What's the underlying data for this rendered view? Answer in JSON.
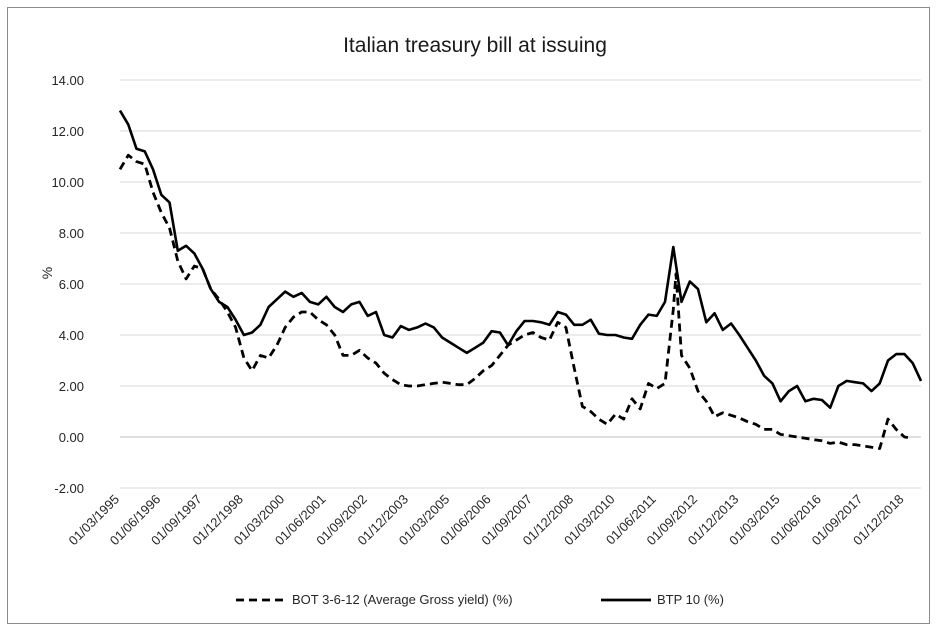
{
  "chart_data": {
    "type": "line",
    "title": "Italian treasury bill at issuing",
    "xlabel": "",
    "ylabel": "%",
    "ylim": [
      -2,
      14
    ],
    "yticks": [
      "-2.00",
      "0.00",
      "2.00",
      "4.00",
      "6.00",
      "8.00",
      "10.00",
      "12.00",
      "14.00"
    ],
    "xticks": [
      "01/03/1995",
      "01/06/1996",
      "01/09/1997",
      "01/12/1998",
      "01/03/2000",
      "01/06/2001",
      "01/09/2002",
      "01/12/2003",
      "01/03/2005",
      "01/06/2006",
      "01/09/2007",
      "01/12/2008",
      "01/03/2010",
      "01/06/2011",
      "01/09/2012",
      "01/12/2013",
      "01/03/2015",
      "01/06/2016",
      "01/09/2017",
      "01/12/2018"
    ],
    "grid": true,
    "legend_position": "bottom",
    "colors": {
      "line": "#000000",
      "grid": "#d9d9d9",
      "text": "#262626"
    },
    "series": [
      {
        "name": "BOT 3-6-12 (Average Gross yield) (%)",
        "style": "dashed",
        "points": [
          [
            "1995-03",
            10.5
          ],
          [
            "1995-06",
            11.05
          ],
          [
            "1995-09",
            10.8
          ],
          [
            "1995-12",
            10.7
          ],
          [
            "1996-03",
            9.6
          ],
          [
            "1996-06",
            8.8
          ],
          [
            "1996-09",
            8.2
          ],
          [
            "1996-12",
            6.9
          ],
          [
            "1997-03",
            6.2
          ],
          [
            "1997-06",
            6.7
          ],
          [
            "1997-09",
            6.6
          ],
          [
            "1997-12",
            5.8
          ],
          [
            "1998-03",
            5.4
          ],
          [
            "1998-06",
            4.9
          ],
          [
            "1998-09",
            4.3
          ],
          [
            "1998-12",
            3.1
          ],
          [
            "1999-03",
            2.6
          ],
          [
            "1999-06",
            3.2
          ],
          [
            "1999-09",
            3.1
          ],
          [
            "1999-12",
            3.6
          ],
          [
            "2000-03",
            4.3
          ],
          [
            "2000-06",
            4.7
          ],
          [
            "2000-09",
            4.9
          ],
          [
            "2000-12",
            4.9
          ],
          [
            "2001-03",
            4.6
          ],
          [
            "2001-06",
            4.4
          ],
          [
            "2001-09",
            4.0
          ],
          [
            "2001-12",
            3.2
          ],
          [
            "2002-03",
            3.2
          ],
          [
            "2002-06",
            3.4
          ],
          [
            "2002-09",
            3.1
          ],
          [
            "2002-12",
            2.9
          ],
          [
            "2003-03",
            2.5
          ],
          [
            "2003-06",
            2.25
          ],
          [
            "2003-09",
            2.05
          ],
          [
            "2003-12",
            2.0
          ],
          [
            "2004-03",
            2.0
          ],
          [
            "2004-06",
            2.05
          ],
          [
            "2004-09",
            2.1
          ],
          [
            "2004-12",
            2.15
          ],
          [
            "2005-03",
            2.1
          ],
          [
            "2005-06",
            2.05
          ],
          [
            "2005-09",
            2.05
          ],
          [
            "2005-12",
            2.3
          ],
          [
            "2006-03",
            2.6
          ],
          [
            "2006-06",
            2.8
          ],
          [
            "2006-09",
            3.2
          ],
          [
            "2006-12",
            3.6
          ],
          [
            "2007-03",
            3.8
          ],
          [
            "2007-06",
            4.0
          ],
          [
            "2007-09",
            4.1
          ],
          [
            "2007-12",
            3.9
          ],
          [
            "2008-03",
            3.8
          ],
          [
            "2008-06",
            4.5
          ],
          [
            "2008-09",
            4.3
          ],
          [
            "2008-12",
            2.7
          ],
          [
            "2009-03",
            1.2
          ],
          [
            "2009-06",
            1.0
          ],
          [
            "2009-09",
            0.7
          ],
          [
            "2009-12",
            0.5
          ],
          [
            "2010-03",
            0.9
          ],
          [
            "2010-06",
            0.7
          ],
          [
            "2010-09",
            1.5
          ],
          [
            "2010-12",
            1.1
          ],
          [
            "2011-03",
            2.1
          ],
          [
            "2011-06",
            1.9
          ],
          [
            "2011-09",
            2.1
          ],
          [
            "2011-12",
            5.0
          ],
          [
            "2012-01",
            6.4
          ],
          [
            "2012-03",
            3.2
          ],
          [
            "2012-06",
            2.7
          ],
          [
            "2012-09",
            1.8
          ],
          [
            "2012-12",
            1.4
          ],
          [
            "2013-03",
            0.8
          ],
          [
            "2013-06",
            0.95
          ],
          [
            "2013-09",
            0.85
          ],
          [
            "2013-12",
            0.75
          ],
          [
            "2014-03",
            0.6
          ],
          [
            "2014-06",
            0.5
          ],
          [
            "2014-09",
            0.3
          ],
          [
            "2014-12",
            0.3
          ],
          [
            "2015-03",
            0.1
          ],
          [
            "2015-06",
            0.05
          ],
          [
            "2015-09",
            0.0
          ],
          [
            "2015-12",
            -0.05
          ],
          [
            "2016-03",
            -0.1
          ],
          [
            "2016-06",
            -0.15
          ],
          [
            "2016-09",
            -0.25
          ],
          [
            "2016-12",
            -0.2
          ],
          [
            "2017-03",
            -0.3
          ],
          [
            "2017-06",
            -0.3
          ],
          [
            "2017-09",
            -0.35
          ],
          [
            "2017-12",
            -0.4
          ],
          [
            "2018-03",
            -0.45
          ],
          [
            "2018-06",
            0.7
          ],
          [
            "2018-09",
            0.3
          ],
          [
            "2018-12",
            0.0
          ],
          [
            "2019-03",
            -0.05
          ]
        ]
      },
      {
        "name": "BTP 10 (%)",
        "style": "solid",
        "points": [
          [
            "1995-03",
            12.8
          ],
          [
            "1995-06",
            12.25
          ],
          [
            "1995-09",
            11.3
          ],
          [
            "1995-12",
            11.2
          ],
          [
            "1996-03",
            10.5
          ],
          [
            "1996-06",
            9.5
          ],
          [
            "1996-09",
            9.2
          ],
          [
            "1996-12",
            7.3
          ],
          [
            "1997-03",
            7.5
          ],
          [
            "1997-06",
            7.2
          ],
          [
            "1997-09",
            6.6
          ],
          [
            "1997-12",
            5.8
          ],
          [
            "1998-03",
            5.3
          ],
          [
            "1998-06",
            5.1
          ],
          [
            "1998-09",
            4.6
          ],
          [
            "1998-12",
            4.0
          ],
          [
            "1999-03",
            4.1
          ],
          [
            "1999-06",
            4.4
          ],
          [
            "1999-09",
            5.1
          ],
          [
            "1999-12",
            5.4
          ],
          [
            "2000-03",
            5.7
          ],
          [
            "2000-06",
            5.5
          ],
          [
            "2000-09",
            5.65
          ],
          [
            "2000-12",
            5.3
          ],
          [
            "2001-03",
            5.2
          ],
          [
            "2001-06",
            5.5
          ],
          [
            "2001-09",
            5.1
          ],
          [
            "2001-12",
            4.9
          ],
          [
            "2002-03",
            5.2
          ],
          [
            "2002-06",
            5.3
          ],
          [
            "2002-09",
            4.75
          ],
          [
            "2002-12",
            4.9
          ],
          [
            "2003-03",
            4.0
          ],
          [
            "2003-06",
            3.9
          ],
          [
            "2003-09",
            4.35
          ],
          [
            "2003-12",
            4.2
          ],
          [
            "2004-03",
            4.3
          ],
          [
            "2004-06",
            4.45
          ],
          [
            "2004-09",
            4.3
          ],
          [
            "2004-12",
            3.9
          ],
          [
            "2005-03",
            3.7
          ],
          [
            "2005-06",
            3.5
          ],
          [
            "2005-09",
            3.3
          ],
          [
            "2005-12",
            3.5
          ],
          [
            "2006-03",
            3.7
          ],
          [
            "2006-06",
            4.15
          ],
          [
            "2006-09",
            4.1
          ],
          [
            "2006-12",
            3.6
          ],
          [
            "2007-03",
            4.15
          ],
          [
            "2007-06",
            4.55
          ],
          [
            "2007-09",
            4.55
          ],
          [
            "2007-12",
            4.5
          ],
          [
            "2008-03",
            4.4
          ],
          [
            "2008-06",
            4.9
          ],
          [
            "2008-09",
            4.8
          ],
          [
            "2008-12",
            4.4
          ],
          [
            "2009-03",
            4.4
          ],
          [
            "2009-06",
            4.6
          ],
          [
            "2009-09",
            4.05
          ],
          [
            "2009-12",
            4.0
          ],
          [
            "2010-03",
            4.0
          ],
          [
            "2010-06",
            3.9
          ],
          [
            "2010-09",
            3.85
          ],
          [
            "2010-12",
            4.4
          ],
          [
            "2011-03",
            4.8
          ],
          [
            "2011-06",
            4.75
          ],
          [
            "2011-09",
            5.3
          ],
          [
            "2011-12",
            7.45
          ],
          [
            "2012-03",
            5.3
          ],
          [
            "2012-06",
            6.1
          ],
          [
            "2012-09",
            5.8
          ],
          [
            "2012-12",
            4.5
          ],
          [
            "2013-03",
            4.85
          ],
          [
            "2013-06",
            4.2
          ],
          [
            "2013-09",
            4.45
          ],
          [
            "2013-12",
            4.0
          ],
          [
            "2014-03",
            3.5
          ],
          [
            "2014-06",
            3.0
          ],
          [
            "2014-09",
            2.4
          ],
          [
            "2014-12",
            2.1
          ],
          [
            "2015-03",
            1.4
          ],
          [
            "2015-06",
            1.8
          ],
          [
            "2015-09",
            2.0
          ],
          [
            "2015-12",
            1.4
          ],
          [
            "2016-03",
            1.5
          ],
          [
            "2016-06",
            1.45
          ],
          [
            "2016-09",
            1.15
          ],
          [
            "2016-12",
            2.0
          ],
          [
            "2017-03",
            2.2
          ],
          [
            "2017-06",
            2.15
          ],
          [
            "2017-09",
            2.1
          ],
          [
            "2017-12",
            1.8
          ],
          [
            "2018-03",
            2.1
          ],
          [
            "2018-06",
            3.0
          ],
          [
            "2018-09",
            3.25
          ],
          [
            "2018-12",
            3.25
          ],
          [
            "2019-03",
            2.9
          ],
          [
            "2019-06",
            2.2
          ]
        ]
      }
    ]
  }
}
